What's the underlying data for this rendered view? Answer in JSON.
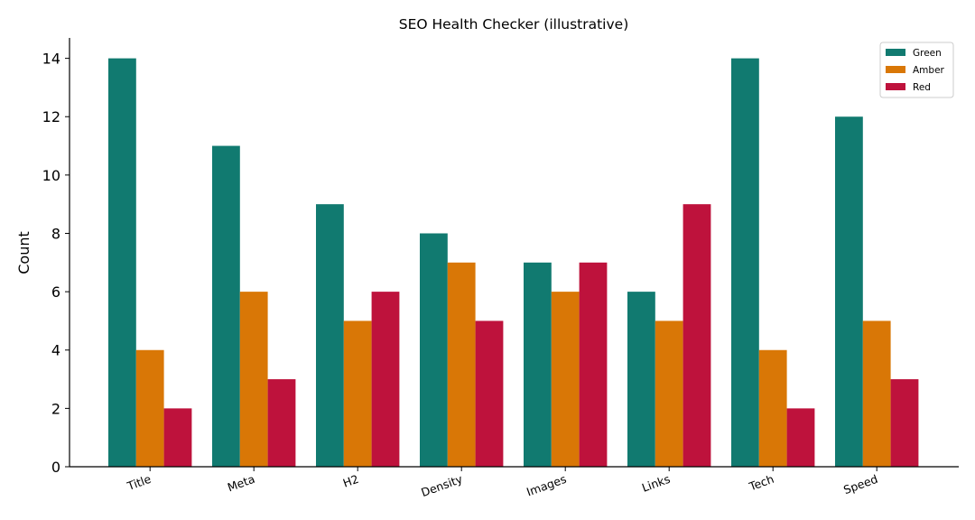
{
  "chart_data": {
    "type": "bar",
    "title": "SEO Health Checker (illustrative)",
    "xlabel": "",
    "ylabel": "Count",
    "categories": [
      "Title",
      "Meta",
      "H2",
      "Density",
      "Images",
      "Links",
      "Tech",
      "Speed"
    ],
    "series": [
      {
        "name": "Green",
        "color": "#117a70",
        "values": [
          14,
          11,
          9,
          8,
          7,
          6,
          14,
          12
        ]
      },
      {
        "name": "Amber",
        "color": "#d97706",
        "values": [
          4,
          6,
          5,
          7,
          6,
          5,
          4,
          5
        ]
      },
      {
        "name": "Red",
        "color": "#be123c",
        "values": [
          2,
          3,
          6,
          5,
          7,
          9,
          2,
          3
        ]
      }
    ],
    "ylim": [
      0,
      14.7
    ],
    "yticks": [
      0,
      2,
      4,
      6,
      8,
      10,
      12,
      14
    ],
    "grid": false,
    "legend_position": "top-right"
  }
}
